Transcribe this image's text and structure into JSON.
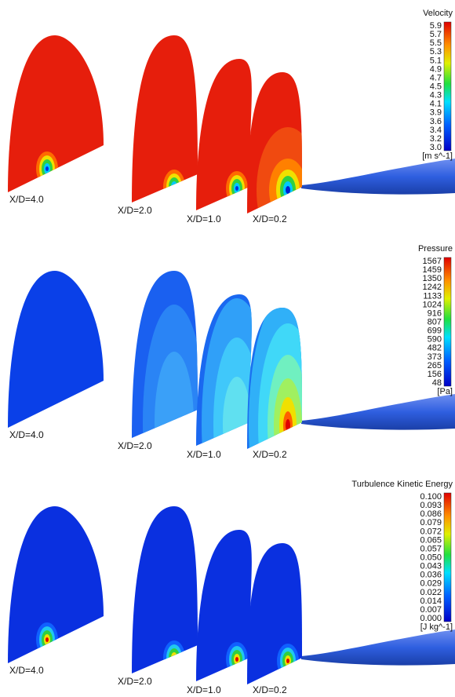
{
  "panels": [
    {
      "legend": {
        "title": "Velocity",
        "ticks": [
          "5.9",
          "5.7",
          "5.5",
          "5.3",
          "5.1",
          "4.9",
          "4.7",
          "4.5",
          "4.3",
          "4.1",
          "3.9",
          "3.6",
          "3.4",
          "3.2",
          "3.0"
        ],
        "unit": "[m s^-1]"
      },
      "planes": [
        "X/D=4.0",
        "X/D=2.0",
        "X/D=1.0",
        "X/D=0.2"
      ]
    },
    {
      "legend": {
        "title": "Pressure",
        "ticks": [
          "1567",
          "1459",
          "1350",
          "1242",
          "1133",
          "1024",
          "916",
          "807",
          "699",
          "590",
          "482",
          "373",
          "265",
          "156",
          "48"
        ],
        "unit": "[Pa]"
      },
      "planes": [
        "X/D=4.0",
        "X/D=2.0",
        "X/D=1.0",
        "X/D=0.2"
      ]
    },
    {
      "legend": {
        "title": "Turbulence Kinetic Energy",
        "ticks": [
          "0.100",
          "0.093",
          "0.086",
          "0.079",
          "0.072",
          "0.065",
          "0.057",
          "0.050",
          "0.043",
          "0.036",
          "0.029",
          "0.022",
          "0.014",
          "0.007",
          "0.000"
        ],
        "unit": "[J kg^-1]"
      },
      "planes": [
        "X/D=4.0",
        "X/D=2.0",
        "X/D=1.0",
        "X/D=0.2"
      ]
    }
  ]
}
